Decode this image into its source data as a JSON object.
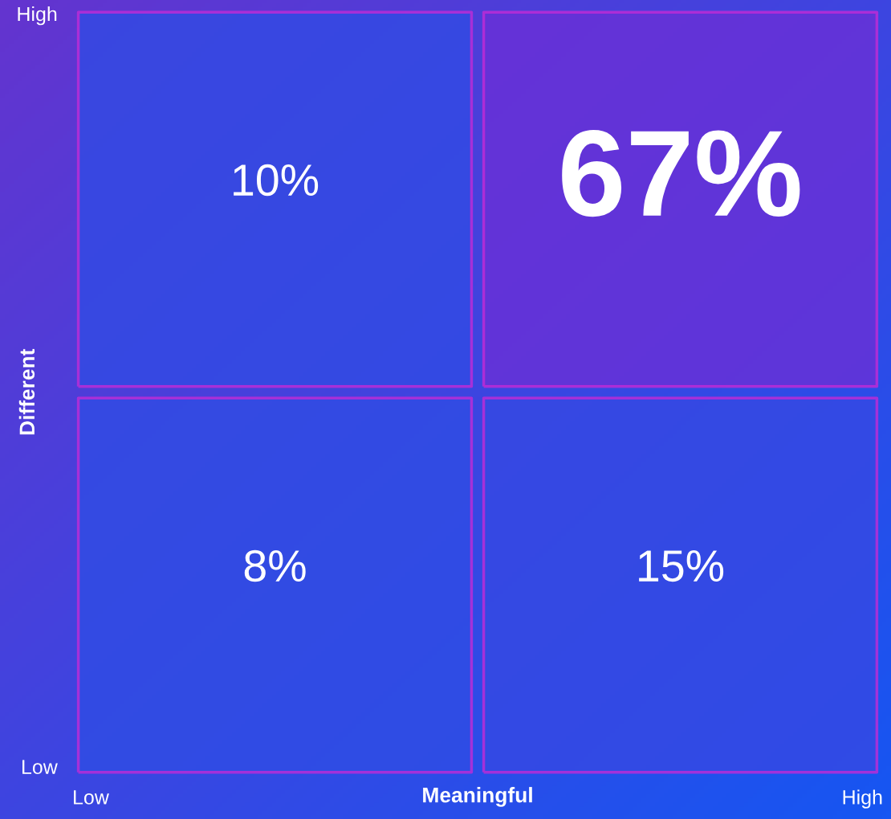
{
  "chart_data": {
    "type": "heatmap",
    "xlabel": "Meaningful",
    "ylabel": "Different",
    "categories": [
      "Low",
      "High"
    ],
    "y_categories": [
      "High",
      "Low"
    ],
    "cells": [
      [
        10,
        67
      ],
      [
        8,
        15
      ]
    ],
    "cell_labels": [
      [
        "10%",
        "67%"
      ],
      [
        "8%",
        "15%"
      ]
    ]
  }
}
